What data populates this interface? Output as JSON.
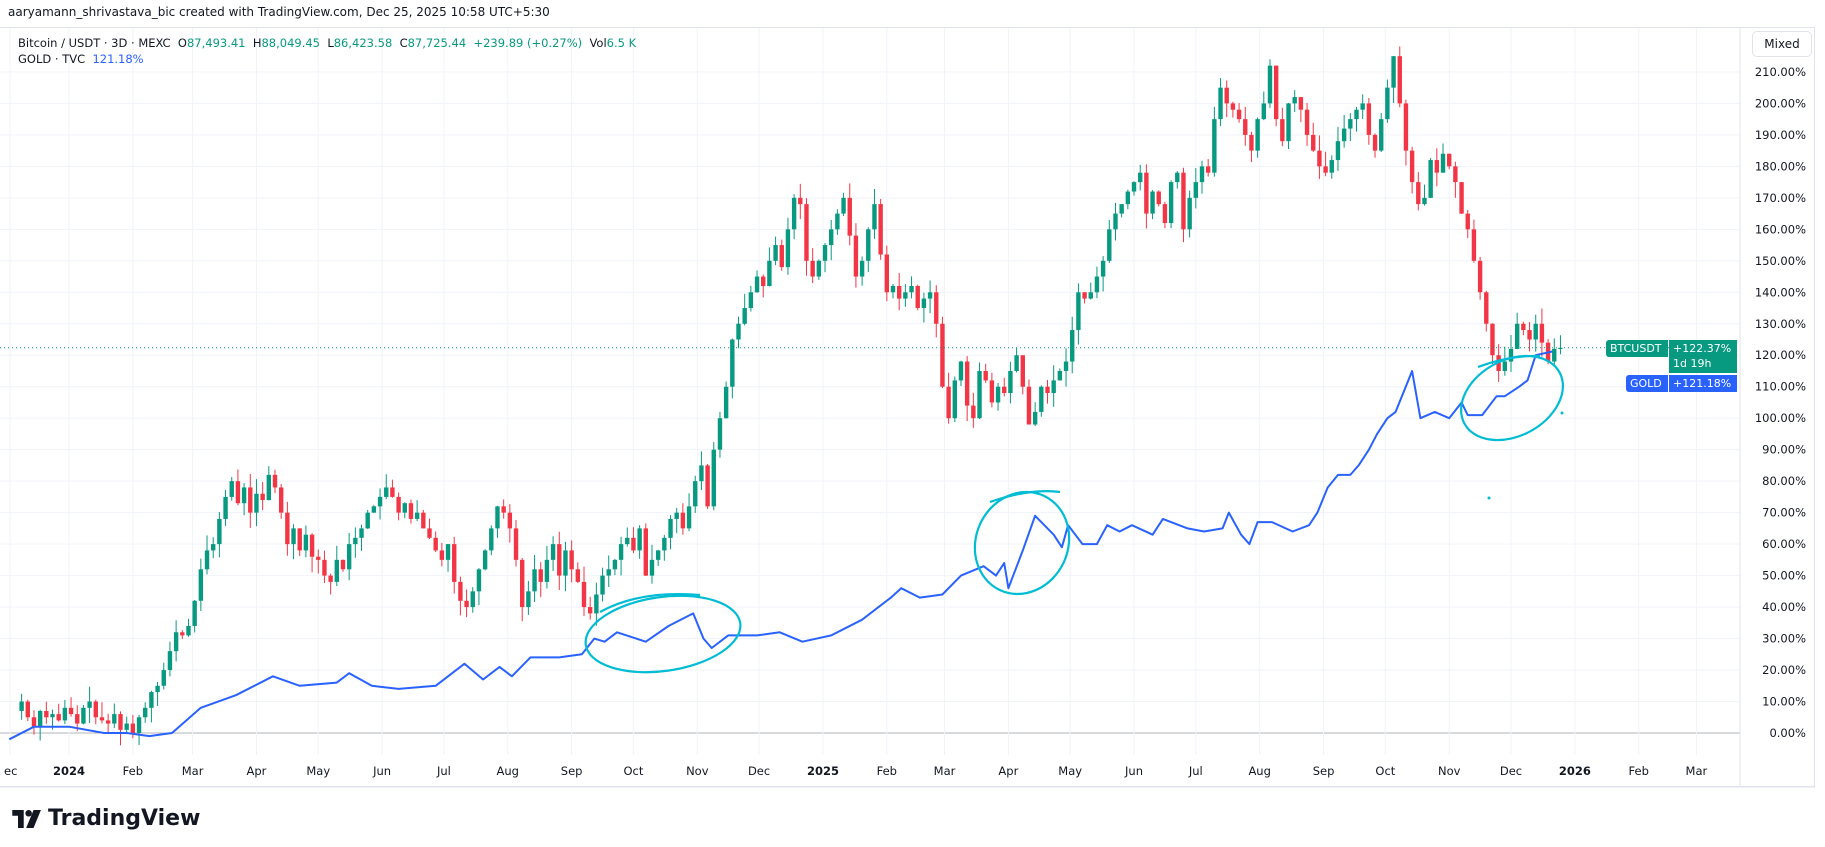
{
  "credit": "aaryamann_shrivastava_bic created with TradingView.com, Dec 25, 2025 10:58 UTC+5:30",
  "legend": {
    "symbol": "Bitcoin / USDT · 3D · MEXC",
    "open_label": "O",
    "open": "87,493.41",
    "high_label": "H",
    "high": "88,049.45",
    "low_label": "L",
    "low": "86,423.58",
    "close_label": "C",
    "close": "87,725.44",
    "change": "+239.89 (+0.27%)",
    "vol_label": "Vol",
    "vol": "6.5 K",
    "compare_symbol": "GOLD · TVC",
    "compare_value": "121.18%"
  },
  "scale_mode_button": "Mixed",
  "price_labels": {
    "btc_name": "BTCUSDT",
    "btc_value": "+122.37%",
    "btc_countdown": "1d 19h",
    "gold_name": "GOLD",
    "gold_value": "+121.18%"
  },
  "logo_text": "TradingView",
  "colors": {
    "up": "#089981",
    "down": "#f23645",
    "gold": "#2962ff",
    "annotation": "#00bcd4",
    "grid": "#f0f3fa"
  },
  "chart_data": {
    "type": "candlestick+line",
    "y_axis": {
      "unit": "%",
      "min": 0,
      "max": 210,
      "step": 10,
      "ticks": [
        "0.00%",
        "10.00%",
        "20.00%",
        "30.00%",
        "40.00%",
        "50.00%",
        "60.00%",
        "70.00%",
        "80.00%",
        "90.00%",
        "100.00%",
        "110.00%",
        "120.00%",
        "130.00%",
        "140.00%",
        "150.00%",
        "160.00%",
        "170.00%",
        "180.00%",
        "190.00%",
        "200.00%",
        "210.00%"
      ]
    },
    "x_axis": {
      "ticks": [
        {
          "label": "ec",
          "date": "2023-12-01"
        },
        {
          "label": "2024",
          "date": "2024-01-01"
        },
        {
          "label": "Feb",
          "date": "2024-02-01"
        },
        {
          "label": "Mar",
          "date": "2024-03-01"
        },
        {
          "label": "Apr",
          "date": "2024-04-01"
        },
        {
          "label": "May",
          "date": "2024-05-01"
        },
        {
          "label": "Jun",
          "date": "2024-06-01"
        },
        {
          "label": "Jul",
          "date": "2024-07-01"
        },
        {
          "label": "Aug",
          "date": "2024-08-01"
        },
        {
          "label": "Sep",
          "date": "2024-09-01"
        },
        {
          "label": "Oct",
          "date": "2024-10-01"
        },
        {
          "label": "Nov",
          "date": "2024-11-01"
        },
        {
          "label": "Dec",
          "date": "2024-12-01"
        },
        {
          "label": "2025",
          "date": "2025-01-01"
        },
        {
          "label": "Feb",
          "date": "2025-02-01"
        },
        {
          "label": "Mar",
          "date": "2025-03-01"
        },
        {
          "label": "Apr",
          "date": "2025-04-01"
        },
        {
          "label": "May",
          "date": "2025-05-01"
        },
        {
          "label": "Jun",
          "date": "2025-06-01"
        },
        {
          "label": "Jul",
          "date": "2025-07-01"
        },
        {
          "label": "Aug",
          "date": "2025-08-01"
        },
        {
          "label": "Sep",
          "date": "2025-09-01"
        },
        {
          "label": "Oct",
          "date": "2025-10-01"
        },
        {
          "label": "Nov",
          "date": "2025-11-01"
        },
        {
          "label": "Dec",
          "date": "2025-12-01"
        },
        {
          "label": "2026",
          "date": "2026-01-01"
        },
        {
          "label": "Feb",
          "date": "2026-02-01"
        },
        {
          "label": "Mar",
          "date": "2026-03-01"
        }
      ]
    },
    "series": [
      {
        "name": "BTCUSDT",
        "kind": "candles",
        "interval": "3D",
        "last_date": "2025-12-25",
        "close_pct": [
          10,
          5,
          2,
          7,
          5,
          6,
          4,
          8,
          6,
          3,
          8,
          10,
          5,
          4,
          3,
          6,
          1,
          3,
          0,
          5,
          8,
          13,
          15,
          20,
          26,
          32,
          31,
          34,
          42,
          52,
          58,
          60,
          68,
          75,
          80,
          73,
          78,
          70,
          76,
          74,
          82,
          78,
          70,
          60,
          65,
          58,
          63,
          56,
          55,
          50,
          48,
          55,
          52,
          60,
          62,
          65,
          70,
          72,
          75,
          78,
          75,
          70,
          73,
          68,
          70,
          65,
          62,
          58,
          55,
          60,
          48,
          42,
          40,
          45,
          52,
          58,
          65,
          72,
          70,
          65,
          55,
          40,
          45,
          52,
          48,
          55,
          60,
          50,
          58,
          52,
          48,
          40,
          38,
          44,
          50,
          52,
          55,
          60,
          62,
          58,
          65,
          50,
          55,
          58,
          62,
          68,
          70,
          65,
          72,
          80,
          85,
          72,
          90,
          100,
          110,
          125,
          130,
          135,
          140,
          145,
          142,
          150,
          155,
          148,
          160,
          170,
          168,
          150,
          145,
          150,
          155,
          160,
          165,
          170,
          158,
          145,
          150,
          160,
          168,
          152,
          140,
          142,
          138,
          140,
          142,
          135,
          138,
          140,
          130,
          110,
          100,
          112,
          118,
          104,
          100,
          115,
          112,
          105,
          110,
          108,
          115,
          120,
          110,
          98,
          102,
          110,
          108,
          112,
          115,
          118,
          128,
          140,
          138,
          140,
          145,
          150,
          160,
          165,
          168,
          172,
          175,
          178,
          165,
          172,
          168,
          162,
          175,
          178,
          160,
          170,
          175,
          180,
          178,
          195,
          205,
          200,
          198,
          195,
          190,
          185,
          195,
          200,
          212,
          195,
          188,
          200,
          202,
          198,
          190,
          185,
          180,
          178,
          182,
          188,
          192,
          195,
          198,
          200,
          190,
          185,
          195,
          205,
          215,
          200,
          185,
          175,
          168,
          170,
          182,
          178,
          184,
          180,
          175,
          165,
          160,
          150,
          140,
          130,
          120,
          115,
          118,
          122,
          130,
          128,
          125,
          130,
          124,
          118,
          122,
          122.37
        ]
      },
      {
        "name": "GOLD",
        "kind": "line",
        "points": [
          [
            "2023-12-03",
            -2
          ],
          [
            "2023-12-15",
            2
          ],
          [
            "2024-01-01",
            2
          ],
          [
            "2024-01-18",
            0
          ],
          [
            "2024-01-29",
            0
          ],
          [
            "2024-02-09",
            -1
          ],
          [
            "2024-02-20",
            0
          ],
          [
            "2024-03-05",
            8
          ],
          [
            "2024-03-22",
            12
          ],
          [
            "2024-04-09",
            18
          ],
          [
            "2024-04-22",
            15
          ],
          [
            "2024-05-10",
            16
          ],
          [
            "2024-05-16",
            19
          ],
          [
            "2024-05-27",
            15
          ],
          [
            "2024-06-09",
            14
          ],
          [
            "2024-06-27",
            15
          ],
          [
            "2024-07-11",
            22
          ],
          [
            "2024-07-20",
            17
          ],
          [
            "2024-07-28",
            21
          ],
          [
            "2024-08-03",
            18
          ],
          [
            "2024-08-12",
            24
          ],
          [
            "2024-08-26",
            24
          ],
          [
            "2024-09-06",
            25
          ],
          [
            "2024-09-12",
            30
          ],
          [
            "2024-09-17",
            29
          ],
          [
            "2024-09-23",
            32
          ],
          [
            "2024-10-07",
            29
          ],
          [
            "2024-10-18",
            34
          ],
          [
            "2024-10-30",
            38
          ],
          [
            "2024-11-04",
            30
          ],
          [
            "2024-11-08",
            27
          ],
          [
            "2024-11-16",
            31
          ],
          [
            "2024-11-30",
            31
          ],
          [
            "2024-12-11",
            32
          ],
          [
            "2024-12-22",
            29
          ],
          [
            "2025-01-05",
            31
          ],
          [
            "2025-01-20",
            36
          ],
          [
            "2025-02-03",
            43
          ],
          [
            "2025-02-08",
            46
          ],
          [
            "2025-02-17",
            43
          ],
          [
            "2025-02-28",
            44
          ],
          [
            "2025-03-09",
            50
          ],
          [
            "2025-03-20",
            53
          ],
          [
            "2025-03-26",
            50
          ],
          [
            "2025-03-30",
            54
          ],
          [
            "2025-04-01",
            46
          ],
          [
            "2025-04-08",
            58
          ],
          [
            "2025-04-14",
            69
          ],
          [
            "2025-04-23",
            63
          ],
          [
            "2025-04-27",
            59
          ],
          [
            "2025-04-30",
            66
          ],
          [
            "2025-05-07",
            60
          ],
          [
            "2025-05-14",
            60
          ],
          [
            "2025-05-19",
            66
          ],
          [
            "2025-05-25",
            64
          ],
          [
            "2025-05-31",
            66
          ],
          [
            "2025-06-10",
            63
          ],
          [
            "2025-06-15",
            68
          ],
          [
            "2025-06-27",
            65
          ],
          [
            "2025-07-05",
            64
          ],
          [
            "2025-07-14",
            65
          ],
          [
            "2025-07-17",
            70
          ],
          [
            "2025-07-23",
            63
          ],
          [
            "2025-07-27",
            60
          ],
          [
            "2025-07-31",
            67
          ],
          [
            "2025-08-07",
            67
          ],
          [
            "2025-08-17",
            64
          ],
          [
            "2025-08-25",
            66
          ],
          [
            "2025-08-29",
            70
          ],
          [
            "2025-09-03",
            78
          ],
          [
            "2025-09-08",
            82
          ],
          [
            "2025-09-14",
            82
          ],
          [
            "2025-09-18",
            85
          ],
          [
            "2025-09-23",
            90
          ],
          [
            "2025-09-27",
            95
          ],
          [
            "2025-10-02",
            100
          ],
          [
            "2025-10-06",
            102
          ],
          [
            "2025-10-14",
            115
          ],
          [
            "2025-10-18",
            100
          ],
          [
            "2025-10-25",
            102
          ],
          [
            "2025-11-01",
            100
          ],
          [
            "2025-11-07",
            105
          ],
          [
            "2025-11-10",
            101
          ],
          [
            "2025-11-17",
            101
          ],
          [
            "2025-11-24",
            107
          ],
          [
            "2025-11-28",
            107
          ],
          [
            "2025-12-05",
            110
          ],
          [
            "2025-12-09",
            112
          ],
          [
            "2025-12-13",
            120
          ],
          [
            "2025-12-21",
            121.18
          ]
        ]
      }
    ],
    "current_line_pct": 122.37,
    "grid": true
  }
}
